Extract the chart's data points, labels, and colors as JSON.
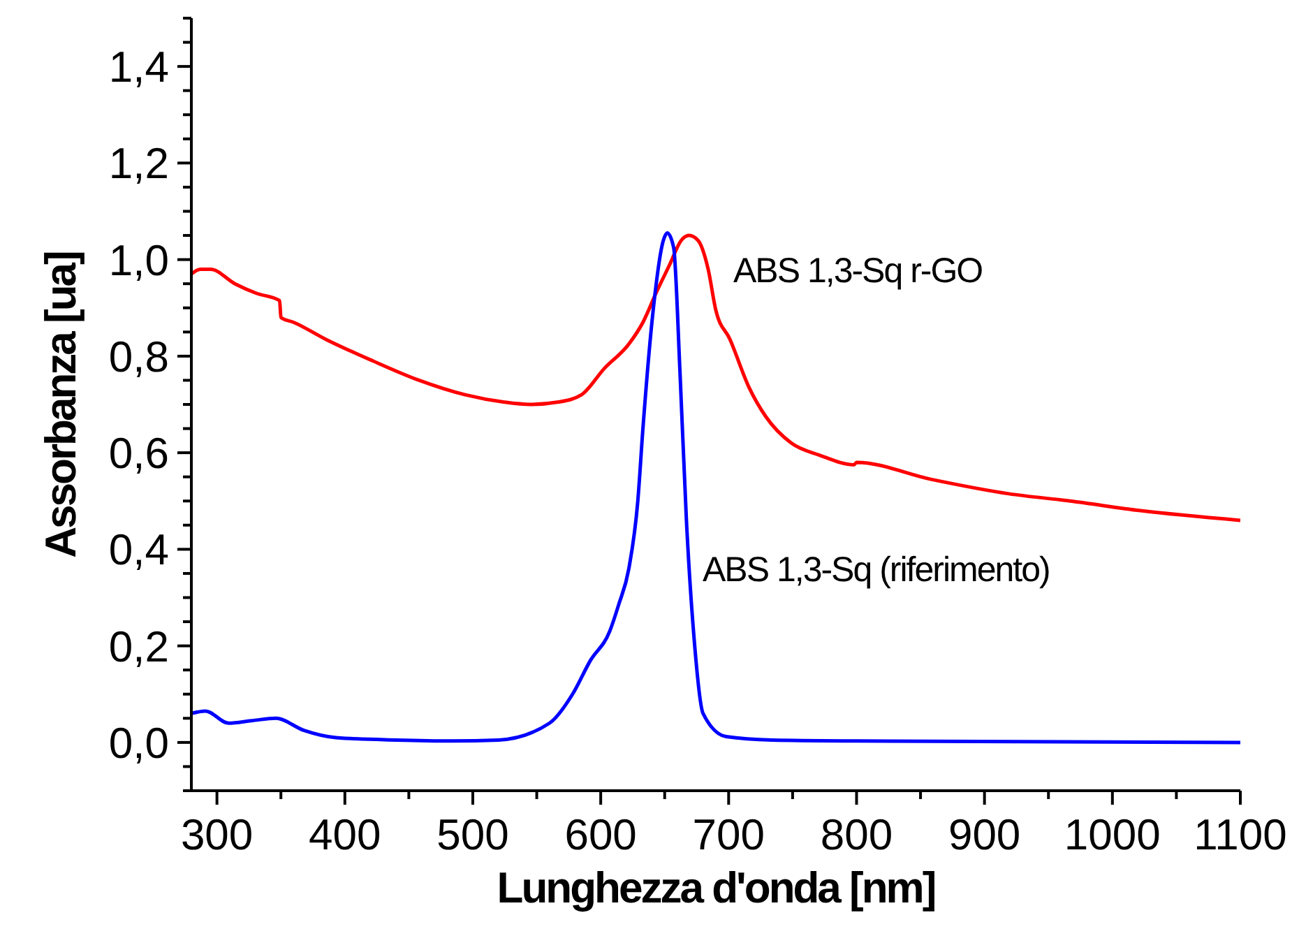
{
  "chart_data": {
    "type": "line",
    "xlabel": "Lunghezza d'onda [nm]",
    "ylabel": "Assorbanza [ua]",
    "xlim": [
      280,
      1100
    ],
    "ylim": [
      -0.1,
      1.5
    ],
    "xticks": [
      300,
      {
        "value": 350,
        "label": null
      },
      400,
      {
        "value": 450,
        "label": null
      },
      500,
      {
        "value": 550,
        "label": null
      },
      600,
      {
        "value": 650,
        "label": null
      },
      700,
      {
        "value": 750,
        "label": null
      },
      800,
      {
        "value": 850,
        "label": null
      },
      900,
      {
        "value": 950,
        "label": null
      },
      1000,
      {
        "value": 1050,
        "label": null
      },
      1100
    ],
    "yticks": [
      {
        "value": -0.1,
        "label": null
      },
      {
        "value": -0.05,
        "label": null
      },
      {
        "value": 0,
        "label": "0,0"
      },
      {
        "value": 0.05,
        "label": null
      },
      {
        "value": 0.1,
        "label": null
      },
      {
        "value": 0.15,
        "label": null
      },
      {
        "value": 0.2,
        "label": "0,2"
      },
      {
        "value": 0.25,
        "label": null
      },
      {
        "value": 0.3,
        "label": null
      },
      {
        "value": 0.35,
        "label": null
      },
      {
        "value": 0.4,
        "label": "0,4"
      },
      {
        "value": 0.45,
        "label": null
      },
      {
        "value": 0.5,
        "label": null
      },
      {
        "value": 0.55,
        "label": null
      },
      {
        "value": 0.6,
        "label": "0,6"
      },
      {
        "value": 0.65,
        "label": null
      },
      {
        "value": 0.7,
        "label": null
      },
      {
        "value": 0.75,
        "label": null
      },
      {
        "value": 0.8,
        "label": "0,8"
      },
      {
        "value": 0.85,
        "label": null
      },
      {
        "value": 0.9,
        "label": null
      },
      {
        "value": 0.95,
        "label": null
      },
      {
        "value": 1.0,
        "label": "1,0"
      },
      {
        "value": 1.05,
        "label": null
      },
      {
        "value": 1.1,
        "label": null
      },
      {
        "value": 1.15,
        "label": null
      },
      {
        "value": 1.2,
        "label": "1,2"
      },
      {
        "value": 1.25,
        "label": null
      },
      {
        "value": 1.3,
        "label": null
      },
      {
        "value": 1.35,
        "label": null
      },
      {
        "value": 1.4,
        "label": "1,4"
      },
      {
        "value": 1.45,
        "label": null
      },
      {
        "value": 1.5,
        "label": null
      }
    ],
    "grid": false,
    "legend": false,
    "marker": "none",
    "line_style": "solid",
    "series": [
      {
        "name": "ABS 1,3-Sq r-GO",
        "color": "#ff0000",
        "x": [
          280,
          287,
          295,
          314,
          331,
          349,
          350,
          360,
          385,
          422,
          458,
          494,
          524,
          545,
          567,
          585,
          603,
          622,
          633,
          644,
          654,
          663,
          669,
          676,
          684,
          690,
          701,
          716,
          729,
          749,
          771,
          798,
          800,
          858,
          919,
          967,
          1022,
          1100
        ],
        "values": [
          0.97,
          0.98,
          0.98,
          0.95,
          0.93,
          0.915,
          0.88,
          0.87,
          0.835,
          0.79,
          0.75,
          0.72,
          0.705,
          0.7,
          0.705,
          0.72,
          0.775,
          0.825,
          0.87,
          0.935,
          0.99,
          1.04,
          1.05,
          1.04,
          0.98,
          0.895,
          0.835,
          0.735,
          0.675,
          0.62,
          0.595,
          0.575,
          0.58,
          0.545,
          0.515,
          0.5,
          0.48,
          0.46
        ]
      },
      {
        "name": "ABS 1,3-Sq (riferimento)",
        "color": "#0000ff",
        "x": [
          280,
          291,
          309,
          327,
          346,
          368,
          393,
          440,
          484,
          520,
          560,
          578,
          592,
          607,
          614,
          622,
          629,
          633,
          641,
          649,
          652,
          657,
          662,
          667,
          673,
          680,
          698,
          734,
          800,
          1100
        ],
        "values": [
          0.06,
          0.065,
          0.04,
          0.045,
          0.05,
          0.025,
          0.01,
          0.005,
          0.003,
          0.005,
          0.04,
          0.1,
          0.17,
          0.23,
          0.285,
          0.36,
          0.5,
          0.65,
          0.895,
          1.04,
          1.055,
          1.025,
          0.765,
          0.46,
          0.215,
          0.06,
          0.012,
          0.005,
          0.003,
          0.0
        ]
      }
    ]
  }
}
